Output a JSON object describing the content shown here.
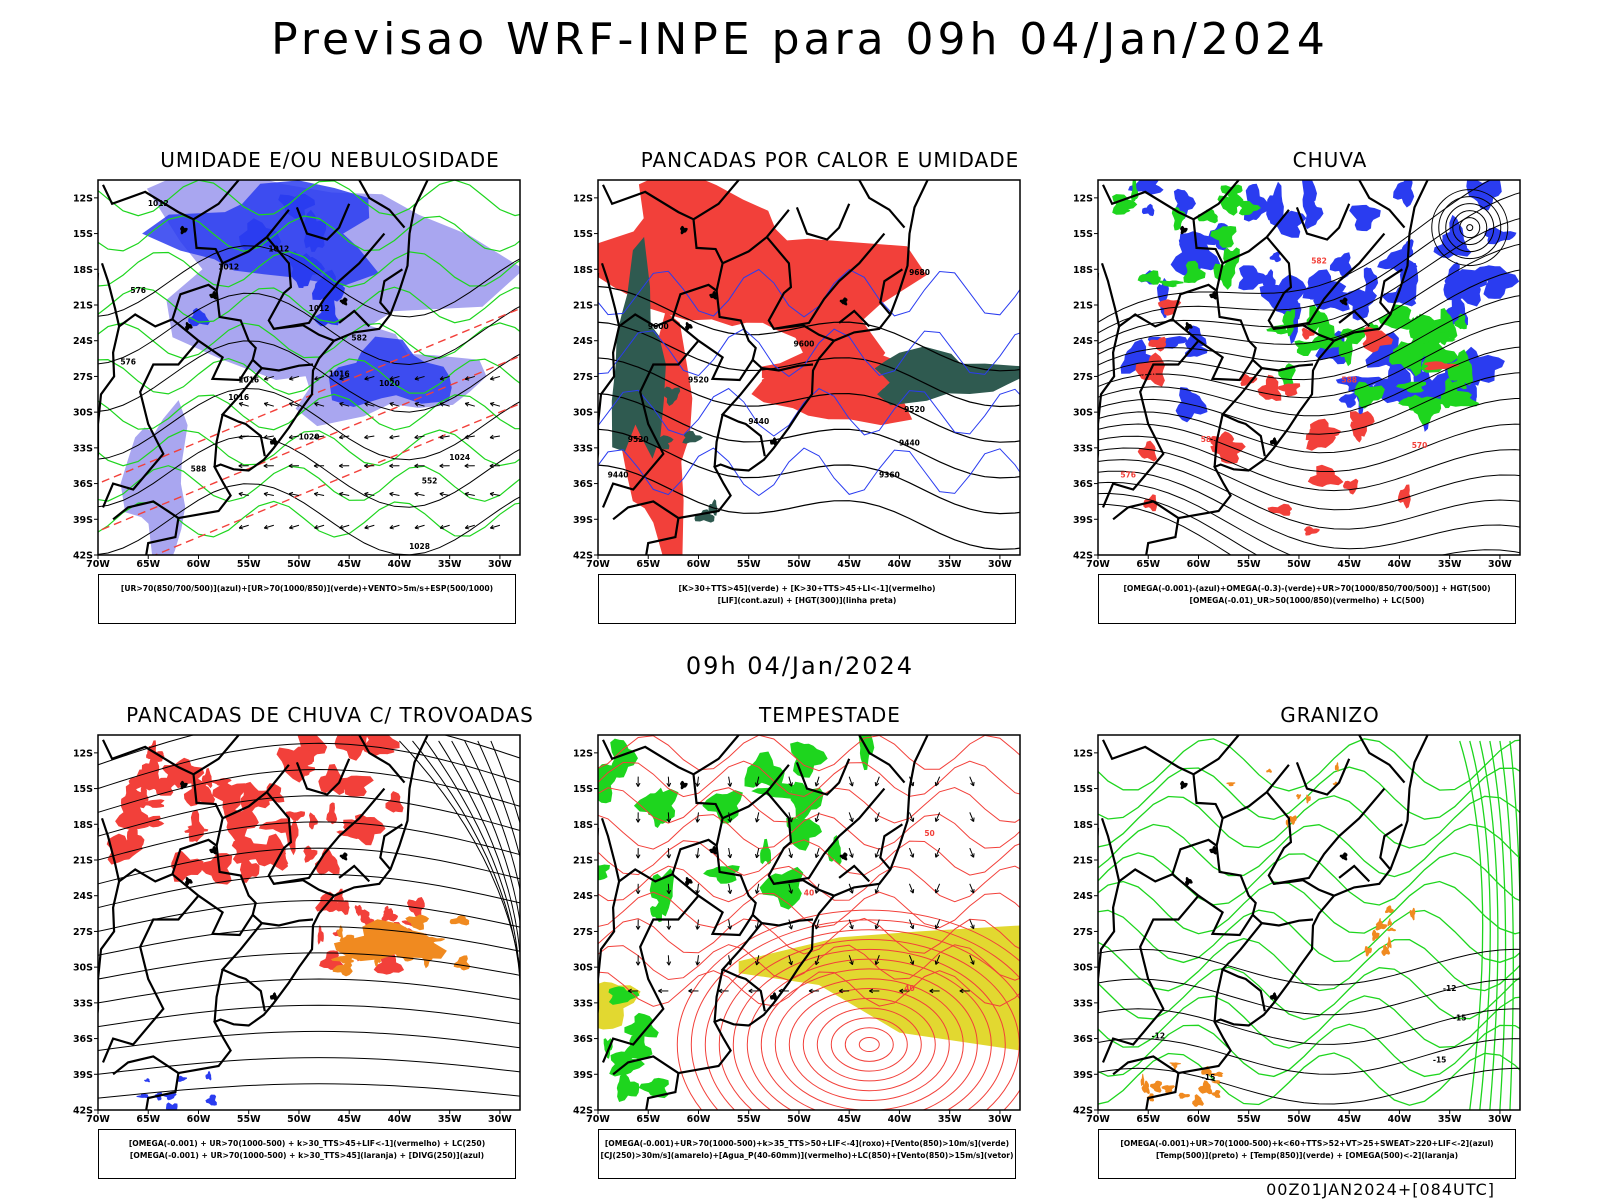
{
  "main_title": "Previsao WRF-INPE  para 09h 04/Jan/2024",
  "mid_title": "09h 04/Jan/2024",
  "footer": "00Z01JAN2024+[084UTC]",
  "axes": {
    "lat_labels": [
      "12S",
      "15S",
      "18S",
      "21S",
      "24S",
      "27S",
      "30S",
      "33S",
      "36S",
      "39S",
      "42S"
    ],
    "lon_labels": [
      "70W",
      "65W",
      "60W",
      "55W",
      "50W",
      "45W",
      "40W",
      "35W",
      "30W"
    ]
  },
  "colors": {
    "blue": "#2a3cf0",
    "lightblue": "#a9a6f0",
    "green": "#1ed51e",
    "red": "#f2403a",
    "darkteal": "#2f5a50",
    "orange": "#f08a20",
    "yellow": "#e2d830"
  },
  "panels": [
    {
      "title": "UMIDADE E/OU NEBULOSIDADE",
      "legend": [
        "[UR>70(850/700/500)](azul)+[UR>70(1000/850)](verde)+VENTO>5m/s+ESP(500/1000)"
      ],
      "labels": [
        "1012",
        "1012",
        "1012",
        "1012",
        "1016",
        "1016",
        "1016",
        "1020",
        "1020",
        "1024",
        "1028",
        "576",
        "576",
        "582",
        "588",
        "552"
      ]
    },
    {
      "title": "PANCADAS POR CALOR E UMIDADE",
      "legend": [
        "[K>30+TTS>45](verde) + [K>30+TTS>45+LI<-1](vermelho)",
        "[LIF](cont.azul) + [HGT(300)](linha preta)"
      ],
      "labels": [
        "9680",
        "9600",
        "9600",
        "9520",
        "9520",
        "9440",
        "9440",
        "9360",
        "9520",
        "9440"
      ]
    },
    {
      "title": "CHUVA",
      "legend": [
        "[OMEGA(-0.001)-(azul)+OMEGA(-0.3)-(verde)+UR>70(1000/850/700/500)] + HGT(500)",
        "[OMEGA(-0.01)_UR>50(1000/850)(vermelho) + LC(500)"
      ],
      "labels": [
        "582",
        "576",
        "576",
        "582",
        "588",
        "570"
      ]
    },
    {
      "title": "PANCADAS DE CHUVA C/ TROVOADAS",
      "legend": [
        "[OMEGA(-0.001) + UR>70(1000-500) + k>30_TTS>45+LIF<-1](vermelho) + LC(250)",
        "[OMEGA(-0.001) + UR>70(1000-500) + k>30_TTS>45](laranja) + [DIVG(250)](azul)"
      ],
      "labels": []
    },
    {
      "title": "TEMPESTADE",
      "legend": [
        "[OMEGA(-0.001)+UR>70(1000-500)+k>35_TTS>50+LIF<-4](roxo)+[Vento(850)>10m/s](verde)",
        "[CJ(250)>30m/s](amarelo)+[Agua_P(40-60mm)](vermelho)+LC(850)+[Vento(850)>15m/s](vetor)"
      ],
      "labels": [
        "40",
        "50",
        "40"
      ]
    },
    {
      "title": "GRANIZO",
      "legend": [
        "[OMEGA(-0.001)+UR>70(1000-500)+k<60+TTS>52+VT>25+SWEAT>220+LIF<-2](azul)",
        "[Temp(500)](preto) + [Temp(850)](verde) + [OMEGA(500)<-2](laranja)"
      ],
      "labels": [
        "-12",
        "-15",
        "-15",
        "-15",
        "-12"
      ]
    }
  ]
}
